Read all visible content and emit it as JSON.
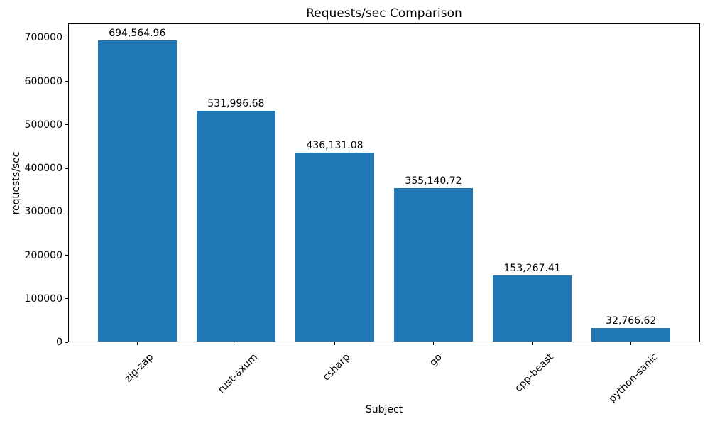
{
  "chart_data": {
    "type": "bar",
    "title": "Requests/sec Comparison",
    "xlabel": "Subject",
    "ylabel": "requests/sec",
    "categories": [
      "zig-zap",
      "rust-axum",
      "csharp",
      "go",
      "cpp-beast",
      "python-sanic"
    ],
    "values": [
      694564.96,
      531996.68,
      436131.08,
      355140.72,
      153267.41,
      32766.62
    ],
    "bar_labels": [
      "694,564.96",
      "531,996.68",
      "436,131.08",
      "355,140.72",
      "153,267.41",
      "32,766.62"
    ],
    "yticks": [
      0,
      100000,
      200000,
      300000,
      400000,
      500000,
      600000,
      700000
    ],
    "ytick_labels": [
      "0",
      "100000",
      "200000",
      "300000",
      "400000",
      "500000",
      "600000",
      "700000"
    ],
    "ylim": [
      0,
      733250
    ],
    "xtick_rotation_deg": 45,
    "bar_color": "#1f77b4",
    "axis_color": "#000000",
    "text_color": "#000000",
    "background": "#ffffff",
    "grid": false,
    "legend": null
  }
}
